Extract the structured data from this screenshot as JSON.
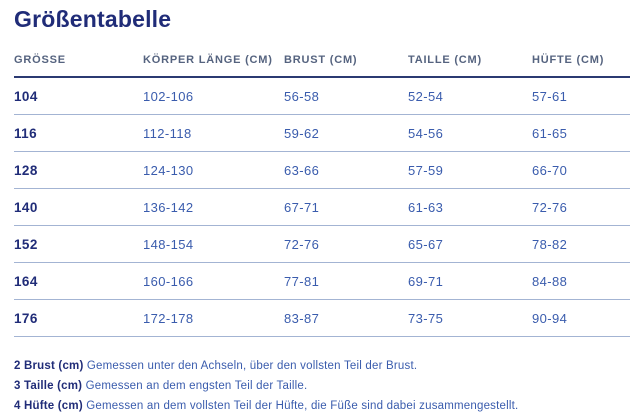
{
  "page": {
    "title": "Größentabelle"
  },
  "colors": {
    "navy": "#202c78",
    "header_slate": "#55637f",
    "cell_blue": "#3a5cad",
    "divider_light": "#a3b4d3",
    "header_rule": "#2b3a72",
    "background": "#ffffff"
  },
  "table": {
    "headers": [
      "GRÖSSE",
      "KÖRPER LÄNGE (CM)",
      "BRUST (CM)",
      "TAILLE (CM)",
      "HÜFTE (CM)"
    ],
    "rows": [
      [
        "104",
        "102-106",
        "56-58",
        "52-54",
        "57-61"
      ],
      [
        "116",
        "112-118",
        "59-62",
        "54-56",
        "61-65"
      ],
      [
        "128",
        "124-130",
        "63-66",
        "57-59",
        "66-70"
      ],
      [
        "140",
        "136-142",
        "67-71",
        "61-63",
        "72-76"
      ],
      [
        "152",
        "148-154",
        "72-76",
        "65-67",
        "78-82"
      ],
      [
        "164",
        "160-166",
        "77-81",
        "69-71",
        "84-88"
      ],
      [
        "176",
        "172-178",
        "83-87",
        "73-75",
        "90-94"
      ]
    ]
  },
  "footnotes": [
    {
      "label": "2 Brust (cm)",
      "text": "Gemessen unter den Achseln, über den vollsten Teil der Brust."
    },
    {
      "label": "3 Taille (cm)",
      "text": "Gemessen an dem engsten Teil der Taille."
    },
    {
      "label": "4 Hüfte (cm)",
      "text": "Gemessen an dem vollsten Teil der Hüfte, die Füße sind dabei zusammengestellt."
    }
  ]
}
